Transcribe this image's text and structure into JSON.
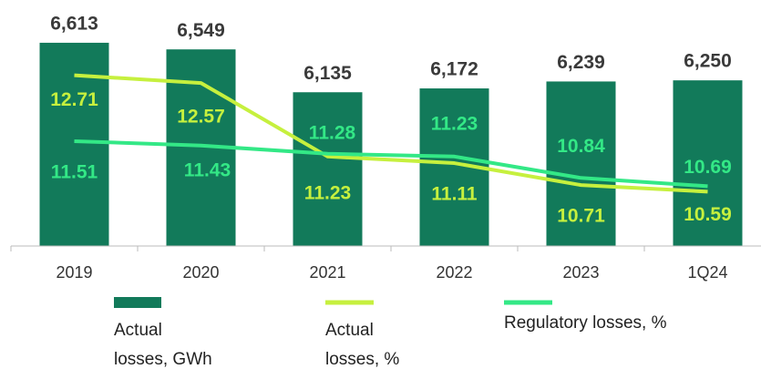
{
  "chart_data": {
    "type": "bar-line",
    "categories": [
      "2019",
      "2020",
      "2021",
      "2022",
      "2023",
      "1Q24"
    ],
    "series": [
      {
        "name": "Actual losses, GWh",
        "type": "bar",
        "color": "#127a5a",
        "values": [
          6613,
          6549,
          6135,
          6172,
          6239,
          6250
        ],
        "value_labels": [
          "6,613",
          "6,549",
          "6,135",
          "6,172",
          "6,239",
          "6,250"
        ]
      },
      {
        "name": "Actual losses, %",
        "type": "line",
        "axis": "y2",
        "color": "#c6f03e",
        "values": [
          12.71,
          12.57,
          11.23,
          11.11,
          10.71,
          10.59
        ]
      },
      {
        "name": "Regulatory losses, %",
        "type": "line",
        "axis": "y2",
        "color": "#33e886",
        "values": [
          11.51,
          11.43,
          11.28,
          11.23,
          10.84,
          10.69
        ]
      }
    ],
    "ylim": [
      4650,
      6850
    ],
    "y2lim": [
      9.6,
      13.75
    ],
    "legend": "bottom"
  }
}
